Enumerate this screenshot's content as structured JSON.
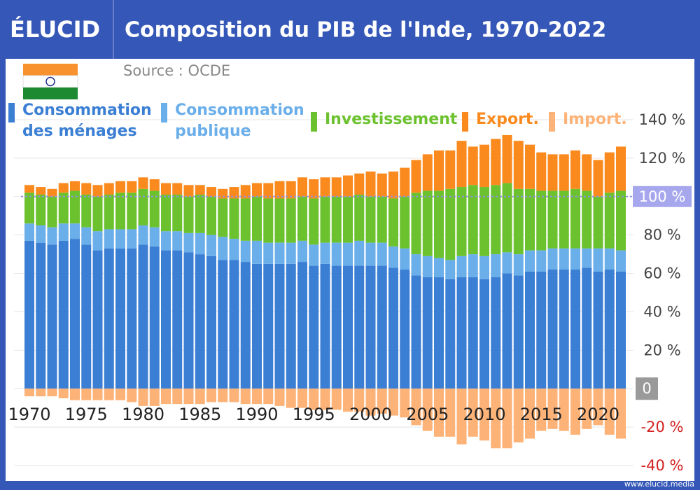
{
  "brand": "ÉLUCID",
  "footer": "www.elucid.media",
  "chart_data": {
    "type": "stacked-bar",
    "title": "Composition du PIB de l'Inde, 1970-2022",
    "subtitle": "Source : OCDE",
    "categories": [
      "1970",
      null,
      null,
      null,
      null,
      "1975",
      null,
      null,
      null,
      null,
      "1980",
      null,
      null,
      null,
      null,
      "1985",
      null,
      null,
      null,
      null,
      "1990",
      null,
      null,
      null,
      null,
      "1995",
      null,
      null,
      null,
      null,
      "2000",
      null,
      null,
      null,
      null,
      "2005",
      null,
      null,
      null,
      null,
      "2010",
      null,
      null,
      null,
      null,
      "2015",
      null,
      null,
      null,
      null,
      "2020",
      null,
      null
    ],
    "series": [
      {
        "name": "Consommation des ménages",
        "color": "#3b7fd4",
        "values": [
          77,
          76,
          75,
          77,
          78,
          75,
          72,
          73,
          73,
          73,
          75,
          74,
          72,
          72,
          71,
          70,
          69,
          67,
          67,
          66,
          65,
          65,
          65,
          65,
          66,
          64,
          65,
          64,
          64,
          64,
          64,
          64,
          63,
          62,
          59,
          58,
          58,
          57,
          58,
          58,
          57,
          58,
          60,
          59,
          61,
          61,
          62,
          62,
          62,
          63,
          61,
          62,
          61
        ]
      },
      {
        "name": "Consommation publique",
        "color": "#6aaeea",
        "values": [
          9,
          9,
          9,
          9,
          8,
          9,
          10,
          10,
          10,
          10,
          10,
          10,
          10,
          10,
          10,
          11,
          11,
          12,
          11,
          11,
          12,
          11,
          11,
          11,
          11,
          11,
          11,
          12,
          12,
          13,
          12,
          12,
          11,
          11,
          11,
          11,
          10,
          10,
          11,
          12,
          12,
          12,
          11,
          11,
          11,
          11,
          11,
          11,
          11,
          10,
          12,
          11,
          11
        ]
      },
      {
        "name": "Investissement",
        "color": "#6cc22e",
        "values": [
          16,
          16,
          16,
          16,
          17,
          17,
          18,
          18,
          19,
          19,
          19,
          19,
          19,
          19,
          19,
          20,
          20,
          20,
          21,
          22,
          23,
          23,
          23,
          23,
          23,
          24,
          24,
          24,
          24,
          24,
          24,
          24,
          25,
          27,
          32,
          34,
          35,
          37,
          36,
          36,
          36,
          36,
          36,
          34,
          32,
          31,
          30,
          30,
          31,
          30,
          27,
          29,
          31
        ]
      },
      {
        "name": "Export.",
        "color": "#fb8a1e",
        "values": [
          4,
          4,
          4,
          5,
          5,
          6,
          6,
          6,
          6,
          6,
          6,
          6,
          6,
          6,
          6,
          5,
          5,
          5,
          6,
          7,
          7,
          8,
          9,
          9,
          10,
          10,
          10,
          10,
          11,
          11,
          13,
          12,
          14,
          15,
          17,
          19,
          21,
          20,
          24,
          20,
          22,
          24,
          25,
          25,
          23,
          20,
          19,
          19,
          20,
          19,
          19,
          21,
          23
        ]
      },
      {
        "name": "Import.",
        "color": "#fdb378",
        "values": [
          -4,
          -4,
          -4,
          -5,
          -6,
          -6,
          -6,
          -6,
          -6,
          -7,
          -9,
          -9,
          -8,
          -8,
          -8,
          -8,
          -7,
          -7,
          -7,
          -8,
          -8,
          -8,
          -9,
          -10,
          -10,
          -11,
          -11,
          -11,
          -12,
          -12,
          -14,
          -13,
          -14,
          -15,
          -19,
          -22,
          -25,
          -25,
          -29,
          -25,
          -27,
          -31,
          -31,
          -28,
          -26,
          -22,
          -21,
          -22,
          -24,
          -21,
          -19,
          -24,
          -26
        ]
      }
    ],
    "ylim": [
      -40,
      140
    ],
    "yticks": [
      {
        "value": -40,
        "label": "-40 %"
      },
      {
        "value": -20,
        "label": "-20 %"
      },
      0,
      {
        "value": 20,
        "label": "20 %"
      },
      {
        "value": 40,
        "label": "40 %"
      },
      {
        "value": 60,
        "label": "60 %"
      },
      {
        "value": 80,
        "label": "80 %"
      },
      {
        "value": 100,
        "label": "100 %"
      },
      {
        "value": 120,
        "label": "120 %"
      },
      {
        "value": 140,
        "label": "140 %"
      }
    ],
    "reference_line": 100,
    "grid": true
  }
}
